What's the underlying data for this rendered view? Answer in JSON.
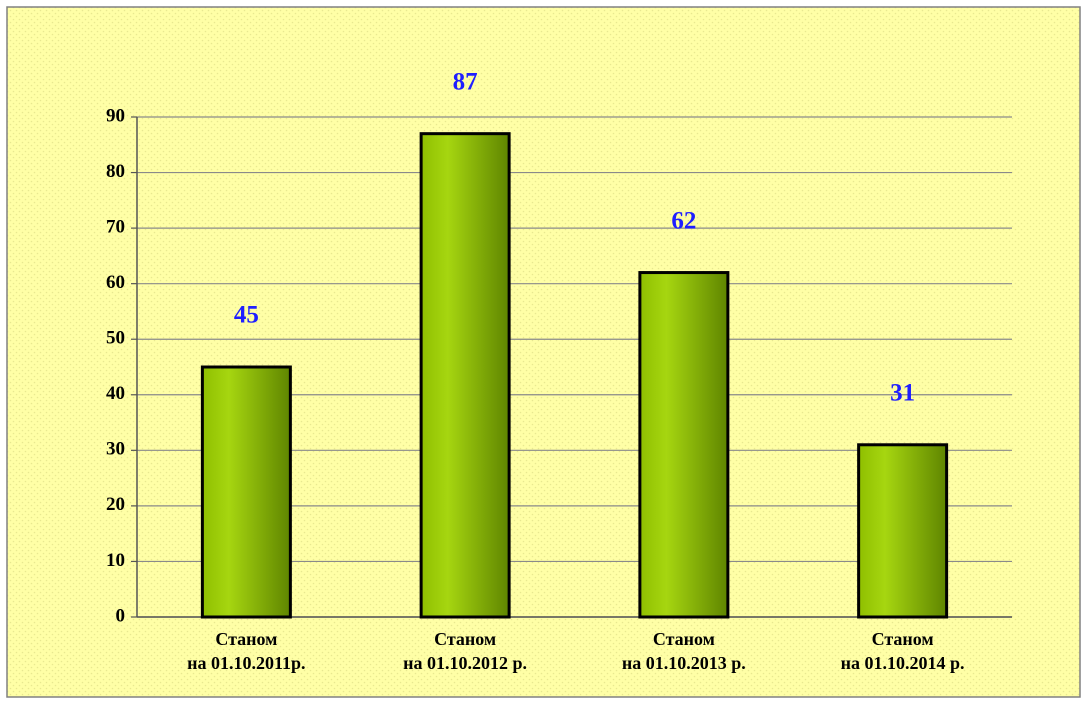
{
  "chart_data": {
    "type": "bar",
    "categories": [
      "Станом\nна 01.10.2011р.",
      "Станом\nна 01.10.2012 р.",
      "Станом\nна 01.10.2013 р.",
      "Станом\nна 01.10.2014 р."
    ],
    "values": [
      45,
      87,
      62,
      31
    ],
    "color": "#8fbf00",
    "label_color": "#1f1fff",
    "ylim": [
      0,
      90
    ],
    "yticks": [
      0,
      10,
      20,
      30,
      40,
      50,
      60,
      70,
      80,
      90
    ],
    "grid": true
  }
}
